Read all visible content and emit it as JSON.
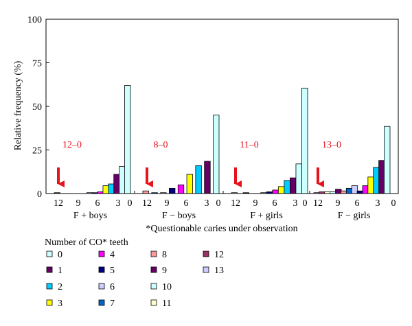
{
  "chart_data": {
    "type": "bar",
    "ylabel": "Relative frequency (%)",
    "ylim": [
      0,
      100
    ],
    "yticks": [
      0,
      25,
      50,
      75,
      100
    ],
    "grid": false,
    "footnote": "*Questionable caries under observation",
    "legend": {
      "title": "Number of CO* teeth",
      "entries": [
        {
          "label": "0",
          "color": "#ccffff"
        },
        {
          "label": "1",
          "color": "#660066"
        },
        {
          "label": "2",
          "color": "#00ccff"
        },
        {
          "label": "3",
          "color": "#ffff00"
        },
        {
          "label": "4",
          "color": "#ff00ff"
        },
        {
          "label": "5",
          "color": "#000080"
        },
        {
          "label": "6",
          "color": "#ccccff"
        },
        {
          "label": "7",
          "color": "#0066cc"
        },
        {
          "label": "8",
          "color": "#ff9999"
        },
        {
          "label": "9",
          "color": "#660066"
        },
        {
          "label": "10",
          "color": "#ccffff"
        },
        {
          "label": "11",
          "color": "#ffffcc"
        },
        {
          "label": "12",
          "color": "#993366"
        },
        {
          "label": "13",
          "color": "#ccccff"
        }
      ]
    },
    "groups": [
      {
        "name": "F + boys",
        "annotation": "12–0",
        "tick_labels": [
          "12",
          "9",
          "6",
          "3",
          "0"
        ],
        "bars": [
          {
            "co": 12,
            "value": 0.5
          },
          {
            "co": 11,
            "value": 0
          },
          {
            "co": 10,
            "value": 0
          },
          {
            "co": 9,
            "value": 0
          },
          {
            "co": 8,
            "value": 0
          },
          {
            "co": 7,
            "value": 0
          },
          {
            "co": 6,
            "value": 0.5
          },
          {
            "co": 5,
            "value": 0.5
          },
          {
            "co": 4,
            "value": 1
          },
          {
            "co": 3,
            "value": 4.5
          },
          {
            "co": 2,
            "value": 5.5
          },
          {
            "co": 1,
            "value": 11
          },
          {
            "co": 0,
            "value": 15.5
          },
          {
            "co": 0,
            "value": 62
          }
        ]
      },
      {
        "name": "F − boys",
        "annotation": "8–0",
        "tick_labels": [
          "12",
          "9",
          "6",
          "3",
          "0"
        ],
        "bars": [
          {
            "co": 8,
            "value": 1.5
          },
          {
            "co": 7,
            "value": 0.5
          },
          {
            "co": 6,
            "value": 0.5
          },
          {
            "co": 5,
            "value": 3
          },
          {
            "co": 4,
            "value": 5
          },
          {
            "co": 3,
            "value": 11
          },
          {
            "co": 2,
            "value": 16
          },
          {
            "co": 1,
            "value": 18.5
          },
          {
            "co": 0,
            "value": 45
          }
        ]
      },
      {
        "name": "F + girls",
        "annotation": "11–0",
        "tick_labels": [
          "12",
          "9",
          "6",
          "3",
          "0"
        ],
        "bars": [
          {
            "co": 11,
            "value": 0.5
          },
          {
            "co": 10,
            "value": 0
          },
          {
            "co": 9,
            "value": 0.5
          },
          {
            "co": 8,
            "value": 0
          },
          {
            "co": 7,
            "value": 0
          },
          {
            "co": 6,
            "value": 0.5
          },
          {
            "co": 5,
            "value": 1
          },
          {
            "co": 4,
            "value": 2
          },
          {
            "co": 3,
            "value": 4
          },
          {
            "co": 2,
            "value": 7.5
          },
          {
            "co": 1,
            "value": 9
          },
          {
            "co": 0,
            "value": 17
          },
          {
            "co": 0,
            "value": 60.5
          }
        ]
      },
      {
        "name": "F − girls",
        "annotation": "13–0",
        "tick_labels": [
          "12",
          "9",
          "6",
          "3",
          "0"
        ],
        "bars": [
          {
            "co": 13,
            "value": 0.5
          },
          {
            "co": 12,
            "value": 1
          },
          {
            "co": 11,
            "value": 1
          },
          {
            "co": 10,
            "value": 1
          },
          {
            "co": 9,
            "value": 2.5
          },
          {
            "co": 8,
            "value": 1.5
          },
          {
            "co": 7,
            "value": 3
          },
          {
            "co": 6,
            "value": 4.5
          },
          {
            "co": 5,
            "value": 1.5
          },
          {
            "co": 4,
            "value": 4.5
          },
          {
            "co": 3,
            "value": 9.5
          },
          {
            "co": 2,
            "value": 15
          },
          {
            "co": 1,
            "value": 19
          },
          {
            "co": 0,
            "value": 38.5
          }
        ]
      }
    ]
  }
}
